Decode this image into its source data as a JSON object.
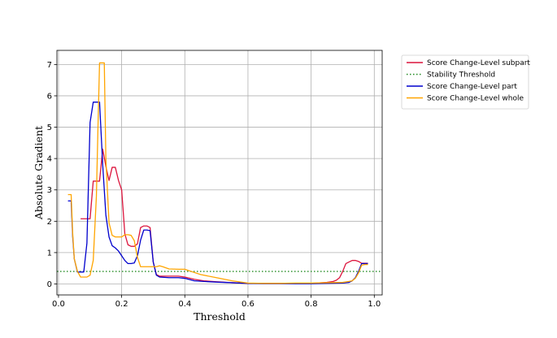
{
  "chart_data": {
    "type": "line",
    "title": "",
    "xlabel": "Threshold",
    "ylabel": "Absolute Gradient",
    "xlim": [
      -0.005,
      1.025
    ],
    "ylim": [
      -0.35,
      7.45
    ],
    "xticks": [
      "0.0",
      "0.2",
      "0.4",
      "0.6",
      "0.8",
      "1.0"
    ],
    "yticks": [
      "0",
      "1",
      "2",
      "3",
      "4",
      "5",
      "6",
      "7"
    ],
    "grid": true,
    "legend_position": "outside-right-top",
    "legend": [
      {
        "label": "Score Change-Level subpart",
        "series": "subpart"
      },
      {
        "label": "Stability Threshold",
        "series": "threshold"
      },
      {
        "label": "Score Change-Level part",
        "series": "part"
      },
      {
        "label": "Score Change-Level whole",
        "series": "whole"
      }
    ],
    "threshold": {
      "name": "Stability Threshold",
      "y": 0.4,
      "color": "#228b22",
      "style": "dotted"
    },
    "series": [
      {
        "name": "Score Change-Level subpart",
        "color": "#dc143c",
        "x": [
          0.07,
          0.09,
          0.1,
          0.11,
          0.13,
          0.14,
          0.15,
          0.16,
          0.17,
          0.18,
          0.19,
          0.2,
          0.21,
          0.22,
          0.23,
          0.24,
          0.25,
          0.26,
          0.27,
          0.28,
          0.29,
          0.3,
          0.31,
          0.32,
          0.35,
          0.38,
          0.4,
          0.43,
          0.46,
          0.5,
          0.55,
          0.6,
          0.65,
          0.7,
          0.75,
          0.8,
          0.85,
          0.87,
          0.88,
          0.89,
          0.9,
          0.91,
          0.92,
          0.93,
          0.94,
          0.95,
          0.96,
          0.97,
          0.98
        ],
        "y": [
          2.08,
          2.08,
          2.08,
          3.28,
          3.28,
          4.3,
          3.75,
          3.3,
          3.72,
          3.72,
          3.3,
          3.0,
          1.6,
          1.25,
          1.2,
          1.2,
          1.28,
          1.8,
          1.85,
          1.85,
          1.8,
          0.7,
          0.3,
          0.25,
          0.25,
          0.25,
          0.22,
          0.15,
          0.1,
          0.07,
          0.04,
          0.02,
          0.02,
          0.02,
          0.02,
          0.02,
          0.05,
          0.08,
          0.12,
          0.2,
          0.4,
          0.65,
          0.7,
          0.75,
          0.75,
          0.72,
          0.66,
          0.66,
          0.66
        ]
      },
      {
        "name": "Score Change-Level part",
        "color": "#0000cd",
        "x": [
          0.03,
          0.04,
          0.045,
          0.05,
          0.06,
          0.07,
          0.08,
          0.09,
          0.1,
          0.11,
          0.12,
          0.13,
          0.14,
          0.15,
          0.16,
          0.17,
          0.18,
          0.19,
          0.2,
          0.21,
          0.22,
          0.23,
          0.24,
          0.25,
          0.26,
          0.27,
          0.28,
          0.29,
          0.3,
          0.31,
          0.32,
          0.35,
          0.38,
          0.4,
          0.43,
          0.46,
          0.5,
          0.55,
          0.6,
          0.65,
          0.7,
          0.75,
          0.8,
          0.85,
          0.9,
          0.92,
          0.93,
          0.94,
          0.95,
          0.96,
          0.97,
          0.98
        ],
        "y": [
          2.65,
          2.65,
          1.5,
          0.8,
          0.38,
          0.38,
          0.38,
          1.3,
          5.15,
          5.8,
          5.8,
          5.8,
          3.8,
          2.2,
          1.5,
          1.22,
          1.15,
          1.05,
          0.9,
          0.75,
          0.65,
          0.65,
          0.67,
          0.9,
          1.4,
          1.72,
          1.72,
          1.7,
          0.7,
          0.28,
          0.22,
          0.2,
          0.2,
          0.18,
          0.1,
          0.08,
          0.06,
          0.04,
          0.02,
          0.01,
          0.01,
          0.01,
          0.01,
          0.02,
          0.03,
          0.05,
          0.1,
          0.2,
          0.4,
          0.65,
          0.65,
          0.65
        ]
      },
      {
        "name": "Score Change-Level whole",
        "color": "#ffa500",
        "x": [
          0.03,
          0.04,
          0.045,
          0.05,
          0.06,
          0.07,
          0.08,
          0.09,
          0.1,
          0.11,
          0.12,
          0.125,
          0.13,
          0.145,
          0.15,
          0.16,
          0.17,
          0.18,
          0.19,
          0.2,
          0.21,
          0.22,
          0.23,
          0.24,
          0.25,
          0.26,
          0.27,
          0.28,
          0.29,
          0.3,
          0.31,
          0.32,
          0.33,
          0.35,
          0.38,
          0.4,
          0.42,
          0.45,
          0.5,
          0.55,
          0.6,
          0.65,
          0.7,
          0.75,
          0.8,
          0.85,
          0.9,
          0.92,
          0.93,
          0.94,
          0.95,
          0.96,
          0.97,
          0.98
        ],
        "y": [
          2.85,
          2.85,
          1.6,
          0.8,
          0.4,
          0.22,
          0.22,
          0.22,
          0.28,
          0.75,
          2.8,
          5.0,
          7.05,
          7.05,
          4.0,
          1.95,
          1.55,
          1.5,
          1.5,
          1.5,
          1.57,
          1.57,
          1.55,
          1.38,
          0.85,
          0.55,
          0.55,
          0.55,
          0.55,
          0.55,
          0.55,
          0.58,
          0.55,
          0.48,
          0.47,
          0.47,
          0.4,
          0.3,
          0.2,
          0.1,
          0.03,
          0.02,
          0.02,
          0.03,
          0.03,
          0.04,
          0.05,
          0.08,
          0.1,
          0.18,
          0.35,
          0.6,
          0.62,
          0.62
        ]
      }
    ]
  }
}
